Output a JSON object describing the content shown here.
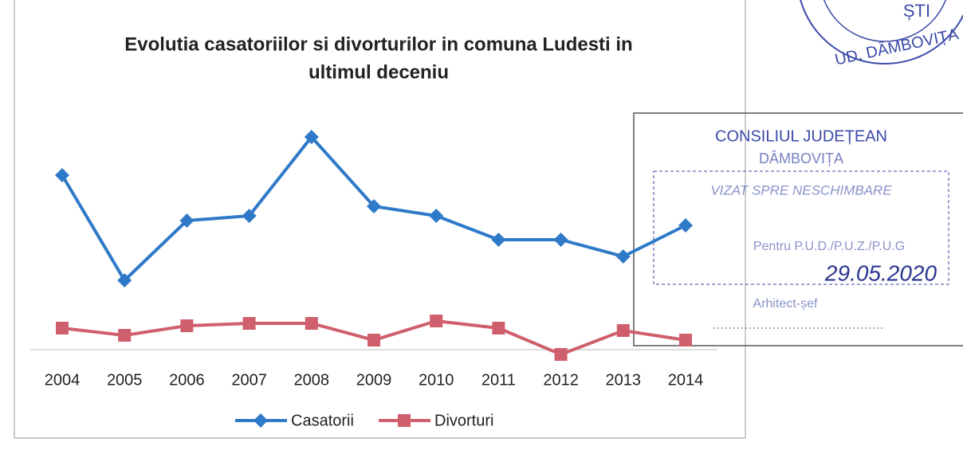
{
  "chart_data": {
    "type": "line",
    "title": [
      "Evolutia casatoriilor si divorturilor in comuna Ludesti in",
      "ultimul deceniu"
    ],
    "categories": [
      "2004",
      "2005",
      "2006",
      "2007",
      "2008",
      "2009",
      "2010",
      "2011",
      "2012",
      "2013",
      "2014"
    ],
    "series": [
      {
        "name": "Casatorii",
        "color": "#2f7ac8",
        "marker": "diamond",
        "values": [
          75,
          31,
          56,
          58,
          91,
          62,
          58,
          48,
          48,
          41,
          54
        ]
      },
      {
        "name": "Divorturi",
        "color": "#cf5f6c",
        "marker": "square",
        "values": [
          11,
          8,
          12,
          13,
          13,
          6,
          14,
          11,
          0,
          10,
          6
        ]
      }
    ],
    "ylim": [
      0,
      100
    ],
    "legend": "bottom",
    "annotations": [
      "CONSILIUL JUDEȚEAN",
      "DÂMBOVIȚA",
      "VIZAT SPRE NESCHIMBARE",
      "Pentru P.U.D./P.U.Z./P.U.G",
      "29.05.2020",
      "Arhitect-șef",
      "UD. DÂMBOVIȚA",
      "ȘTI"
    ]
  }
}
